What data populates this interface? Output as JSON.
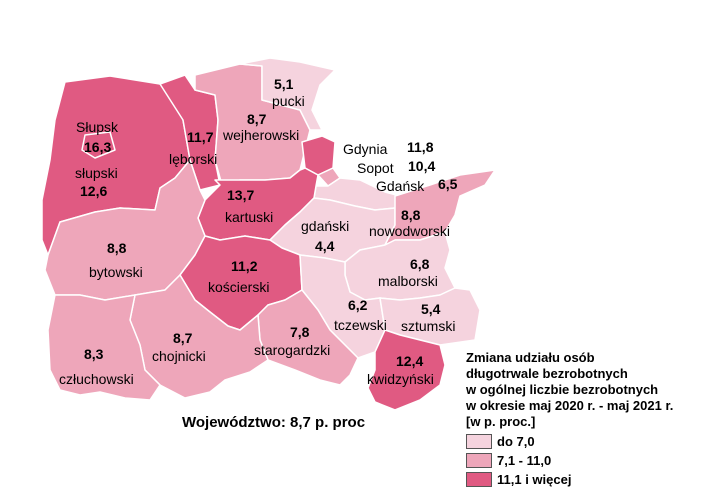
{
  "colors": {
    "low": "#f5d3de",
    "mid": "#eea6ba",
    "high": "#e05a82"
  },
  "powiaty": [
    {
      "id": "slupski",
      "name": "słupski",
      "value": "12,6",
      "class": "high"
    },
    {
      "id": "slupsk",
      "name": "Słupsk",
      "value": "16,3",
      "class": "high"
    },
    {
      "id": "leborski",
      "name": "lęborski",
      "value": "11,7",
      "class": "high"
    },
    {
      "id": "wejherowski",
      "name": "wejherowski",
      "value": "8,7",
      "class": "mid"
    },
    {
      "id": "pucki",
      "name": "pucki",
      "value": "5,1",
      "class": "low"
    },
    {
      "id": "gdynia",
      "name": "Gdynia",
      "value": "11,8",
      "class": "high"
    },
    {
      "id": "sopot",
      "name": "Sopot",
      "value": "10,4",
      "class": "mid"
    },
    {
      "id": "gdansk",
      "name": "Gdańsk",
      "value": "6,5",
      "class": "low"
    },
    {
      "id": "kartuski",
      "name": "kartuski",
      "value": "13,7",
      "class": "high"
    },
    {
      "id": "gdanski",
      "name": "gdański",
      "value": "4,4",
      "class": "low"
    },
    {
      "id": "nowodworski",
      "name": "nowodworski",
      "value": "8,8",
      "class": "mid"
    },
    {
      "id": "bytowski",
      "name": "bytowski",
      "value": "8,8",
      "class": "mid"
    },
    {
      "id": "koscierski",
      "name": "kościerski",
      "value": "11,2",
      "class": "high"
    },
    {
      "id": "malborski",
      "name": "malborski",
      "value": "6,8",
      "class": "low"
    },
    {
      "id": "tczewski",
      "name": "tczewski",
      "value": "6,2",
      "class": "low"
    },
    {
      "id": "sztumski",
      "name": "sztumski",
      "value": "5,4",
      "class": "low"
    },
    {
      "id": "starogardzki",
      "name": "starogardzki",
      "value": "7,8",
      "class": "mid"
    },
    {
      "id": "chojnicki",
      "name": "chojnicki",
      "value": "8,7",
      "class": "mid"
    },
    {
      "id": "czluchowski",
      "name": "człuchowski",
      "value": "8,3",
      "class": "mid"
    },
    {
      "id": "kwidzynski",
      "name": "kwidzyński",
      "value": "12,4",
      "class": "high"
    }
  ],
  "total": "Województwo: 8,7 p. proc",
  "legend": {
    "title": [
      "Zmiana udziału osób",
      "długotrwale bezrobotnych",
      "w ogólnej liczbie bezrobotnych",
      "w okresie maj 2020 r. - maj 2021 r.",
      "[w p. proc.]"
    ],
    "items": [
      {
        "label": "do 7,0",
        "class": "low"
      },
      {
        "label": "7,1 - 11,0",
        "class": "mid"
      },
      {
        "label": "11,1 i więcej",
        "class": "high"
      }
    ]
  }
}
